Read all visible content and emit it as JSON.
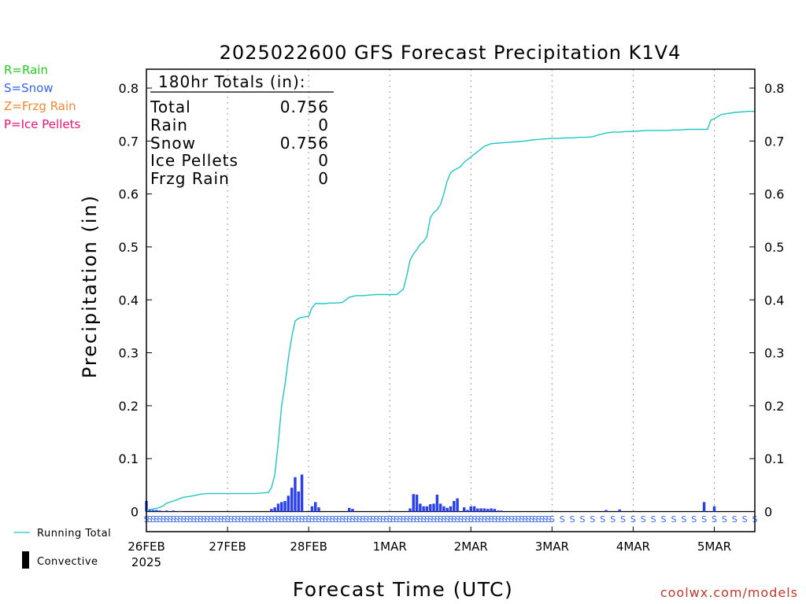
{
  "chart_data": {
    "type": "bar",
    "title": "2025022600 GFS Forecast Precipitation K1V4",
    "xlabel": "Forecast Time (UTC)",
    "ylabel": "Precipitation (in)",
    "ylim": [
      0,
      0.8
    ],
    "yticks": [
      "0",
      "0.1",
      "0.2",
      "0.3",
      "0.4",
      "0.5",
      "0.6",
      "0.7",
      "0.8"
    ],
    "xticks": [
      "26FEB",
      "27FEB",
      "28FEB",
      "1MAR",
      "2MAR",
      "3MAR",
      "4MAR",
      "5MAR"
    ],
    "xtick_year": "2025",
    "xlim_hours": [
      0,
      180
    ],
    "grid": "vertical dotted",
    "precip_type_legend": [
      {
        "label": "R=Rain",
        "color": "#22cc22"
      },
      {
        "label": "S=Snow",
        "color": "#3366ee"
      },
      {
        "label": "Z=Frzg Rain",
        "color": "#ee8833"
      },
      {
        "label": "P=Ice Pellets",
        "color": "#ee1177"
      }
    ],
    "line_legend": {
      "running_total": "Running Total",
      "convective": "Convective"
    },
    "totals_box": {
      "heading": "180hr Totals (in):",
      "rows": [
        {
          "label": "Total",
          "value": "0.756"
        },
        {
          "label": "Rain",
          "value": "0"
        },
        {
          "label": "Snow",
          "value": "0.756"
        },
        {
          "label": "Ice Pellets",
          "value": "0"
        },
        {
          "label": "Frzg Rain",
          "value": "0"
        }
      ]
    },
    "series": [
      {
        "name": "Running Total",
        "color": "#22c5c5",
        "x": [
          0,
          1,
          2,
          3,
          4,
          5,
          6,
          7,
          8,
          9,
          10,
          11,
          12,
          14,
          16,
          18,
          20,
          22,
          24,
          26,
          28,
          30,
          32,
          34,
          36,
          37,
          38,
          39,
          40,
          41,
          42,
          43,
          44,
          45,
          46,
          47,
          48,
          49,
          50,
          51,
          52,
          53,
          54,
          56,
          58,
          60,
          62,
          64,
          66,
          68,
          70,
          72,
          74,
          76,
          77,
          78,
          79,
          80,
          81,
          82,
          83,
          84,
          85,
          86,
          87,
          88,
          89,
          90,
          91,
          92,
          93,
          94,
          95,
          96,
          97,
          98,
          100,
          102,
          104,
          106,
          108,
          110,
          112,
          114,
          116,
          118,
          120,
          122,
          124,
          126,
          128,
          130,
          132,
          134,
          136,
          138,
          140,
          142,
          144,
          146,
          148,
          150,
          152,
          154,
          156,
          158,
          160,
          162,
          164,
          166,
          167,
          168,
          170,
          172,
          174,
          176,
          178,
          180
        ],
        "values": [
          0.002,
          0.004,
          0.005,
          0.006,
          0.008,
          0.011,
          0.016,
          0.018,
          0.02,
          0.022,
          0.025,
          0.027,
          0.028,
          0.03,
          0.033,
          0.034,
          0.034,
          0.034,
          0.034,
          0.034,
          0.034,
          0.034,
          0.034,
          0.035,
          0.036,
          0.045,
          0.07,
          0.13,
          0.2,
          0.24,
          0.29,
          0.33,
          0.36,
          0.365,
          0.367,
          0.368,
          0.369,
          0.385,
          0.393,
          0.393,
          0.393,
          0.393,
          0.394,
          0.394,
          0.395,
          0.405,
          0.408,
          0.408,
          0.409,
          0.41,
          0.41,
          0.41,
          0.41,
          0.42,
          0.445,
          0.475,
          0.487,
          0.495,
          0.505,
          0.51,
          0.52,
          0.555,
          0.565,
          0.57,
          0.58,
          0.6,
          0.625,
          0.64,
          0.645,
          0.648,
          0.652,
          0.66,
          0.665,
          0.67,
          0.675,
          0.68,
          0.69,
          0.695,
          0.696,
          0.697,
          0.698,
          0.699,
          0.7,
          0.702,
          0.703,
          0.704,
          0.705,
          0.705,
          0.706,
          0.706,
          0.707,
          0.707,
          0.708,
          0.712,
          0.715,
          0.717,
          0.717,
          0.718,
          0.718,
          0.719,
          0.72,
          0.72,
          0.72,
          0.72,
          0.721,
          0.721,
          0.722,
          0.722,
          0.722,
          0.722,
          0.74,
          0.742,
          0.75,
          0.752,
          0.754,
          0.755,
          0.756,
          0.756
        ]
      },
      {
        "name": "Snow",
        "color": "#2a3ff0",
        "x": [
          0,
          1,
          2,
          3,
          4,
          6,
          8,
          10,
          37,
          38,
          39,
          40,
          41,
          42,
          43,
          44,
          45,
          46,
          49,
          50,
          51,
          60,
          61,
          78,
          79,
          80,
          81,
          82,
          83,
          84,
          85,
          86,
          87,
          88,
          89,
          90,
          91,
          92,
          94,
          95,
          96,
          97,
          98,
          99,
          100,
          101,
          102,
          103,
          104,
          105,
          136,
          140,
          165,
          168
        ],
        "values": [
          0.02,
          0.003,
          0.003,
          0.003,
          0.002,
          0.002,
          0.002,
          0.001,
          0.005,
          0.008,
          0.015,
          0.018,
          0.02,
          0.03,
          0.045,
          0.065,
          0.038,
          0.07,
          0.01,
          0.018,
          0.008,
          0.007,
          0.005,
          0.006,
          0.033,
          0.032,
          0.015,
          0.01,
          0.01,
          0.014,
          0.015,
          0.032,
          0.015,
          0.01,
          0.007,
          0.01,
          0.02,
          0.025,
          0.008,
          0.003,
          0.01,
          0.01,
          0.006,
          0.006,
          0.006,
          0.005,
          0.006,
          0.005,
          0.002,
          0.002,
          0.003,
          0.004,
          0.018,
          0.01
        ]
      }
    ],
    "precip_type_codes": {
      "symbol": "S",
      "color": "#3366ee",
      "from_hour": 0,
      "to_hour": 180
    }
  },
  "credit": "coolwx.com/models"
}
